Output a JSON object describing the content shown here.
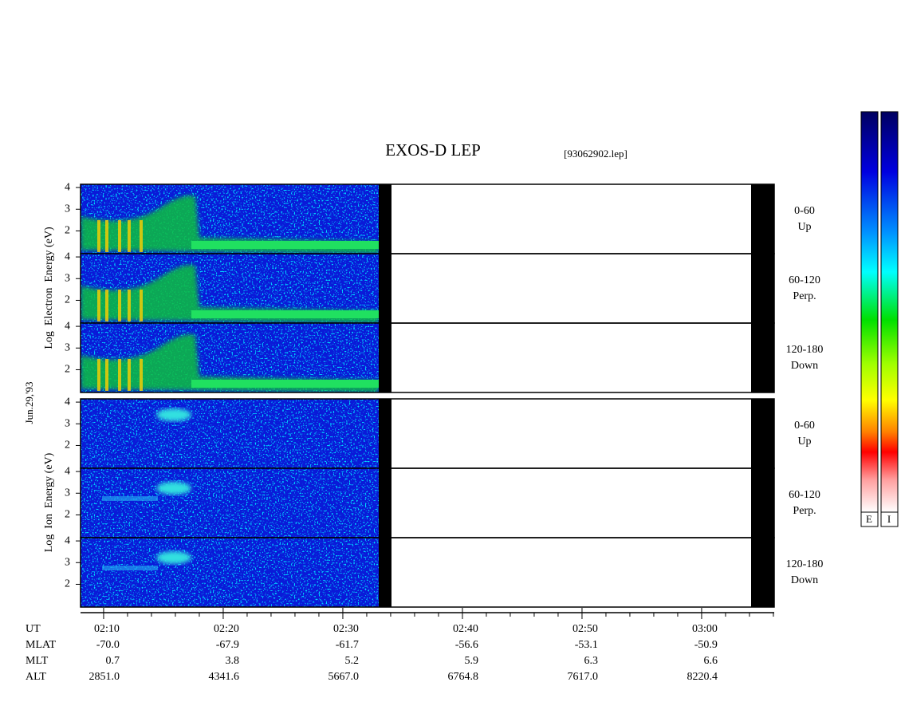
{
  "chart_data": {
    "type": "spectrogram",
    "title": "EXOS-D LEP",
    "file": "[93062902.lep]",
    "date_label": "Jun.29,'93",
    "ylim": [
      0.95,
      4.15
    ],
    "yticks": [
      2,
      3,
      4
    ],
    "xlim": [
      8.07,
      66.07
    ],
    "xticks": [
      {
        "value": 10,
        "label": "02:10"
      },
      {
        "value": 20,
        "label": "02:20"
      },
      {
        "value": 30,
        "label": "02:30"
      },
      {
        "value": 40,
        "label": "02:40"
      },
      {
        "value": 50,
        "label": "02:50"
      },
      {
        "value": 60,
        "label": "03:00"
      }
    ],
    "xminorticks": [
      12,
      14,
      16,
      18,
      22,
      24,
      26,
      28,
      32,
      34,
      36,
      38,
      42,
      44,
      46,
      48,
      52,
      54,
      56,
      58,
      62,
      64,
      66
    ],
    "groups": [
      {
        "ylabel": "Log  Electron  Energy (eV)",
        "panels": [
          {
            "angle": "0-60",
            "direction": "Up"
          },
          {
            "angle": "60-120",
            "direction": "Perp."
          },
          {
            "angle": "120-180",
            "direction": "Down"
          }
        ]
      },
      {
        "ylabel": "Log  Ion  Energy (eV)",
        "panels": [
          {
            "angle": "0-60",
            "direction": "Up"
          },
          {
            "angle": "60-120",
            "direction": "Perp."
          },
          {
            "angle": "120-180",
            "direction": "Down"
          }
        ]
      }
    ],
    "colorbar_labels": [
      "E",
      "I"
    ],
    "ephemeris": {
      "labels": [
        "UT",
        "MLAT",
        "MLT",
        "ALT"
      ],
      "rows": [
        [
          "-70.0",
          "-67.9",
          "-61.7",
          "-56.6",
          "-53.1",
          "-50.9"
        ],
        [
          "0.7",
          "3.8",
          "5.2",
          "5.9",
          "6.3",
          "6.6"
        ],
        [
          "2851.0",
          "4341.6",
          "5667.0",
          "6764.8",
          "7617.0",
          "8220.4"
        ]
      ]
    }
  }
}
